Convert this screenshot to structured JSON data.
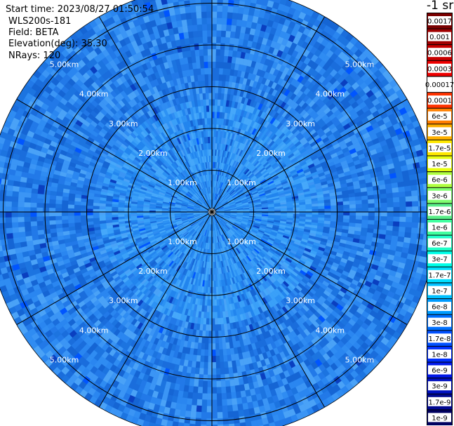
{
  "info": {
    "start_time": "Start time: 2023/08/27 01:50:54",
    "instrument": "WLS200s-181",
    "field": "Field: BETA",
    "elevation": "Elevation(deg): 35.30",
    "nrays": "NRays: 120"
  },
  "colorbar": {
    "unit": "-1 sr",
    "ticks": [
      "0.0017",
      "0.001",
      "0.0006",
      "0.0003",
      "0.00017",
      "0.0001",
      "6e-5",
      "3e-5",
      "1.7e-5",
      "1e-5",
      "6e-6",
      "3e-6",
      "1.7e-6",
      "1e-6",
      "6e-7",
      "3e-7",
      "1.7e-7",
      "1e-7",
      "6e-8",
      "3e-8",
      "1.7e-8",
      "1e-8",
      "6e-9",
      "3e-9",
      "1.7e-9",
      "1e-9"
    ],
    "colors": [
      "#7a0000",
      "#a00000",
      "#c80000",
      "#ee0000",
      "#ffffff",
      "#ff3300",
      "#ff7f00",
      "#ffb000",
      "#ffe800",
      "#e8ff10",
      "#b0ff40",
      "#80ff70",
      "#58ee88",
      "#40ffa0",
      "#20ffc8",
      "#00ffe8",
      "#00e0ff",
      "#00c0ff",
      "#009cff",
      "#0070ff",
      "#0050ff",
      "#0030ff",
      "#0018e8",
      "#0010c0",
      "#000890",
      "#000060"
    ]
  },
  "chart_data": {
    "type": "heatmap",
    "projection": "polar-ppi",
    "range_rings_km": [
      1,
      2,
      3,
      4,
      5
    ],
    "ring_labels": [
      "1.00km",
      "2.00km",
      "3.00km",
      "4.00km",
      "5.00km"
    ],
    "max_range_km": 5.4,
    "azimuth_spokes_deg": [
      0,
      30,
      60,
      90,
      120,
      150,
      180,
      210,
      240,
      270,
      300,
      330
    ],
    "label_angles_deg": [
      -45,
      45,
      135,
      225
    ],
    "n_rays": 120,
    "field": "BETA",
    "elevation_deg": 35.3,
    "value_range_sr-1": [
      1e-09,
      0.0017
    ],
    "typical_value_inner_sr-1": 1e-07,
    "typical_value_outer_sr-1": 3e-08
  }
}
